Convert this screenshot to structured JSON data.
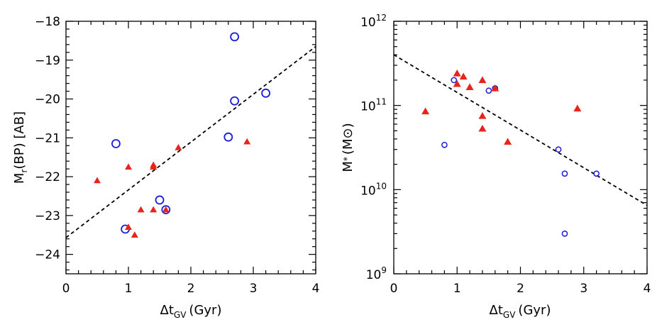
{
  "chart_data": [
    {
      "type": "scatter",
      "title": "",
      "xlabel": "Δt_GV (Gyr)",
      "xlabel_main": "Δt",
      "xlabel_sub": "GV",
      "xlabel_unit": "(Gyr)",
      "ylabel": "M_r(BP) [AB]",
      "ylabel_main": "M",
      "ylabel_sub": "r",
      "ylabel_unit": "(BP)  [AB]",
      "xlim": [
        0,
        4
      ],
      "ylim": [
        -18,
        -24.5
      ],
      "y_reversed": true,
      "y_scale": "linear",
      "x_ticks": [
        0,
        1,
        2,
        3,
        4
      ],
      "x_tick_labels": [
        "0",
        "1",
        "2",
        "3",
        "4"
      ],
      "y_ticks": [
        -18,
        -19,
        -20,
        -21,
        -22,
        -23,
        -24
      ],
      "y_tick_labels": [
        "−18",
        "−19",
        "−20",
        "−21",
        "−22",
        "−23",
        "−24"
      ],
      "series": [
        {
          "name": "circles",
          "marker": "open-circle",
          "color": "#1a1adc",
          "x": [
            0.8,
            0.95,
            1.5,
            1.6,
            2.6,
            2.7,
            2.7,
            3.2
          ],
          "y": [
            -21.15,
            -23.35,
            -22.6,
            -22.85,
            -20.98,
            -20.05,
            -18.4,
            -19.85
          ]
        },
        {
          "name": "triangles",
          "marker": "filled-triangle",
          "color": "#e8231b",
          "x": [
            0.5,
            1.0,
            1.0,
            1.1,
            1.2,
            1.4,
            1.4,
            1.4,
            1.6,
            1.8,
            2.9
          ],
          "y": [
            -22.1,
            -21.75,
            -23.3,
            -23.5,
            -22.85,
            -21.7,
            -21.75,
            -22.85,
            -22.85,
            -21.25,
            -21.1
          ]
        }
      ],
      "fit_line": {
        "style": "dashed",
        "color": "#000000",
        "x": [
          0,
          4
        ],
        "y": [
          -23.57,
          -18.65
        ]
      }
    },
    {
      "type": "scatter",
      "title": "",
      "xlabel": "Δt_GV (Gyr)",
      "xlabel_main": "Δt",
      "xlabel_sub": "GV",
      "xlabel_unit": "(Gyr)",
      "ylabel": "M* (M⊙)",
      "ylabel_main": "M",
      "ylabel_sub": "*",
      "ylabel_unit": "(M⊙)",
      "xlim": [
        0,
        4
      ],
      "ylim": [
        1000000000.0,
        1000000000000.0
      ],
      "y_scale": "log",
      "x_ticks": [
        0,
        1,
        2,
        3,
        4
      ],
      "x_tick_labels": [
        "0",
        "1",
        "2",
        "3",
        "4"
      ],
      "y_ticks": [
        1000000000.0,
        10000000000.0,
        100000000000.0,
        1000000000000.0
      ],
      "y_tick_bases": [
        "10",
        "10",
        "10",
        "10"
      ],
      "y_tick_exps": [
        "9",
        "10",
        "11",
        "12"
      ],
      "series": [
        {
          "name": "circles",
          "marker": "open-circle",
          "color": "#1a1adc",
          "x": [
            0.8,
            0.95,
            1.5,
            1.6,
            2.6,
            2.7,
            2.7,
            3.2
          ],
          "y": [
            34000000000.0,
            200000000000.0,
            150000000000.0,
            160000000000.0,
            30000000000.0,
            15500000000.0,
            3000000000.0,
            15500000000.0
          ]
        },
        {
          "name": "triangles",
          "marker": "filled-triangle",
          "color": "#e8231b",
          "x": [
            0.5,
            1.0,
            1.0,
            1.1,
            1.2,
            1.4,
            1.4,
            1.4,
            1.6,
            1.8,
            2.9
          ],
          "y": [
            85000000000.0,
            240000000000.0,
            180000000000.0,
            220000000000.0,
            165000000000.0,
            200000000000.0,
            75000000000.0,
            53000000000.0,
            160000000000.0,
            37000000000.0,
            92000000000.0
          ]
        }
      ],
      "fit_line": {
        "style": "dashed",
        "color": "#000000",
        "x": [
          0,
          4
        ],
        "y": [
          400000000000.0,
          6500000000.0
        ]
      }
    }
  ]
}
